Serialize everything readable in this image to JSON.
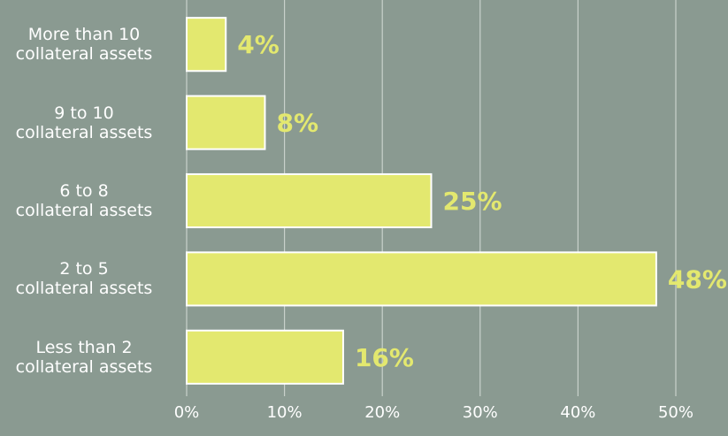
{
  "chart_data": {
    "type": "bar",
    "orientation": "horizontal",
    "categories": [
      "More than 10\ncollateral assets",
      "9 to 10\ncollateral assets",
      "6 to 8\ncollateral assets",
      "2 to 5\ncollateral assets",
      "Less than 2\ncollateral assets"
    ],
    "values": [
      4,
      8,
      25,
      48,
      16
    ],
    "value_labels": [
      "4%",
      "8%",
      "25%",
      "48%",
      "16%"
    ],
    "color": "#e3e86f",
    "xlim": [
      0,
      50
    ],
    "xticks": [
      {
        "value": 0,
        "label": "0%"
      },
      {
        "value": 10,
        "label": "10%"
      },
      {
        "value": 20,
        "label": "20%"
      },
      {
        "value": 30,
        "label": "30%"
      },
      {
        "value": 40,
        "label": "40%"
      },
      {
        "value": 50,
        "label": "50%"
      }
    ],
    "grid": true
  }
}
